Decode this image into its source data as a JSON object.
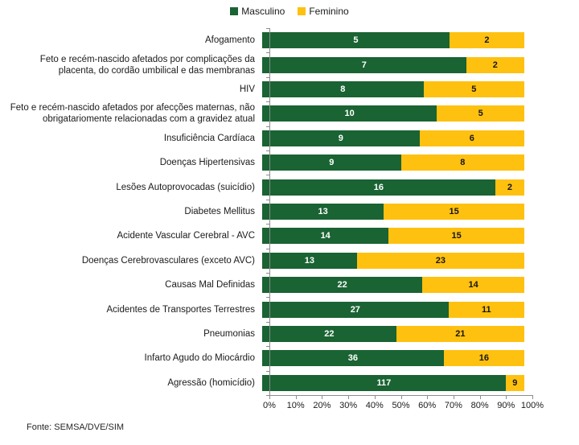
{
  "legend": {
    "items": [
      {
        "label": "Masculino"
      },
      {
        "label": "Feminino"
      }
    ]
  },
  "footer": {
    "source": "Fonte: SEMSA/DVE/SIM"
  },
  "chart_data": {
    "type": "bar",
    "orientation": "horizontal",
    "stacked": true,
    "normalized_to_100_percent": true,
    "title": "",
    "xlabel": "",
    "ylabel": "",
    "axis_color": "#8c8c8c",
    "categories": [
      "Afogamento",
      "Feto e recém-nascido afetados por complicações da placenta, do cordão umbilical e das membranas",
      "HIV",
      "Feto e recém-nascido afetados por afecções maternas, não obrigatariomente relacionadas com a gravidez atual",
      "Insuficiência Cardíaca",
      "Doenças Hipertensivas",
      "Lesões Autoprovocadas (suicídio)",
      "Diabetes Mellitus",
      "Acidente Vascular Cerebral - AVC",
      "Doenças Cerebrovasculares (exceto AVC)",
      "Causas Mal Definidas",
      "Acidentes de Transportes Terrestres",
      "Pneumonias",
      "Infarto Agudo do Miocárdio",
      "Agressão (homicídio)"
    ],
    "series": [
      {
        "name": "Masculino",
        "color": "#1a6333",
        "value_label_color": "#ffffff",
        "values": [
          5,
          7,
          8,
          10,
          9,
          9,
          16,
          13,
          14,
          13,
          22,
          27,
          22,
          36,
          117
        ]
      },
      {
        "name": "Feminino",
        "color": "#ffc110",
        "value_label_color": "#161616",
        "values": [
          2,
          2,
          5,
          5,
          6,
          8,
          2,
          15,
          15,
          23,
          14,
          11,
          21,
          16,
          9
        ]
      }
    ],
    "value_labels_shown": true,
    "x_axis": {
      "range_percent": [
        0,
        100
      ],
      "tick_labels": [
        "0%",
        "10%",
        "20%",
        "30%",
        "40%",
        "50%",
        "60%",
        "70%",
        "80%",
        "90%",
        "100%"
      ]
    },
    "legend_position": "top-center",
    "grid": false
  }
}
